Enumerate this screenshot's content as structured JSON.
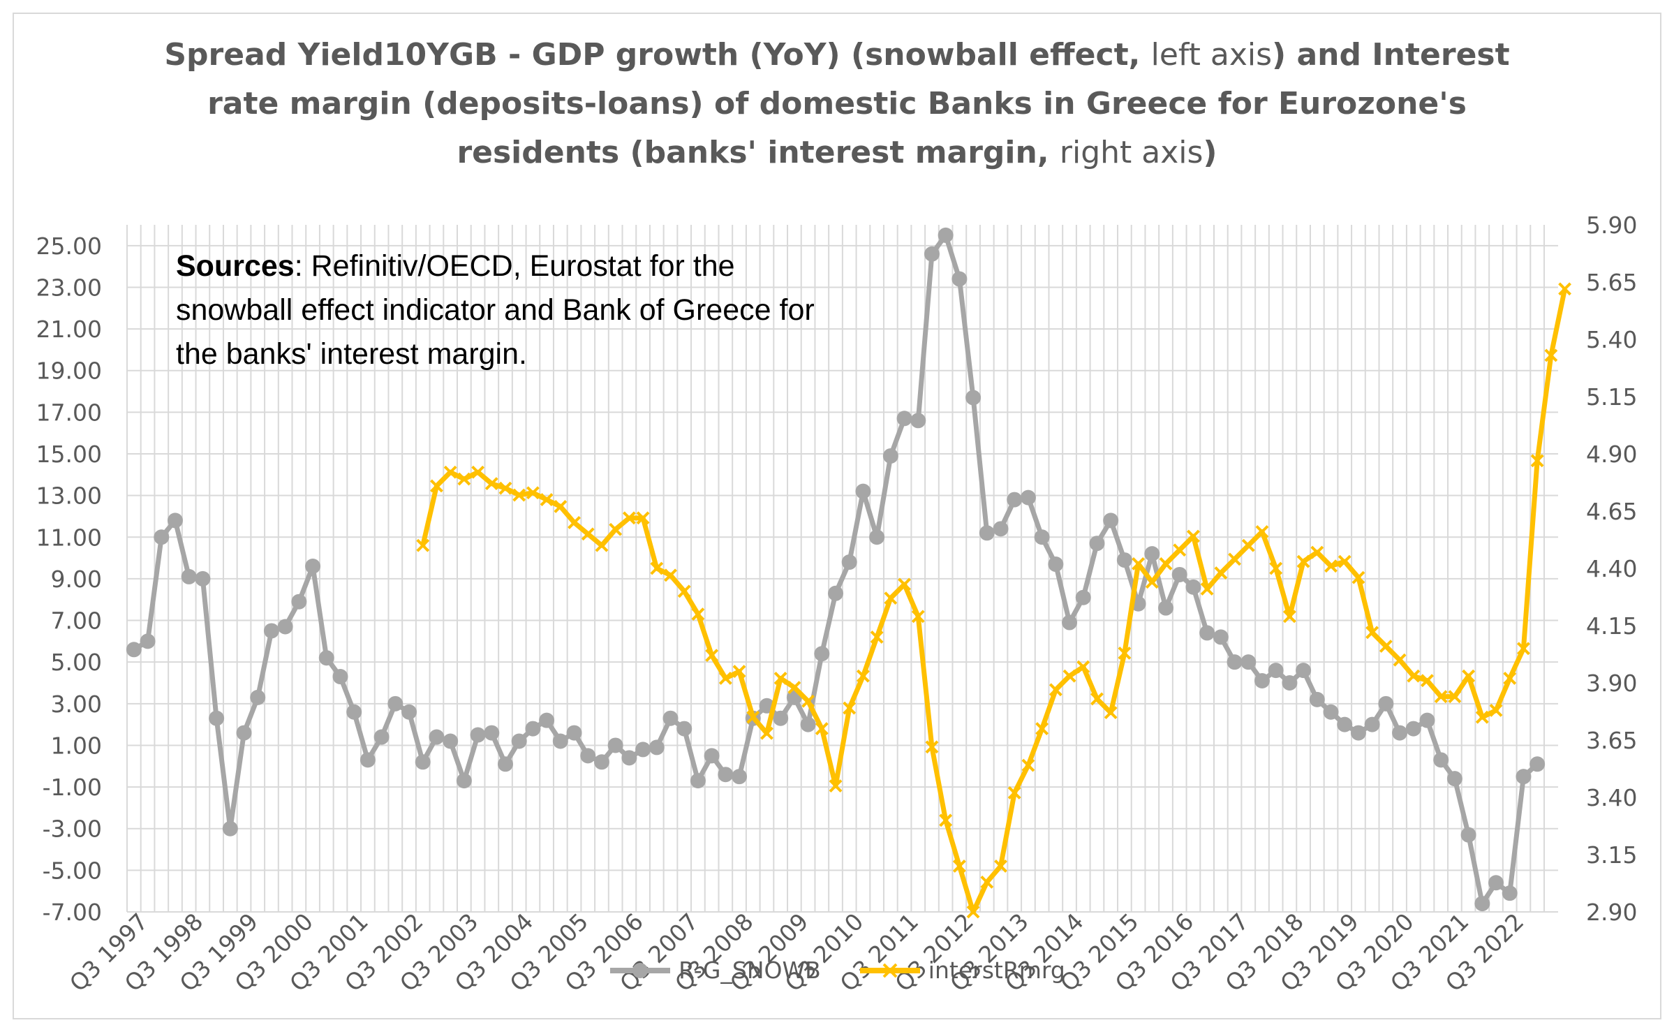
{
  "title": {
    "line1_bold_a": "Spread Yield10YGB - GDP growth (YoY) (snowball effect,",
    "line1_light": "left axis",
    "line1_bold_b": ") and Interest",
    "line2": "rate margin (deposits-loans) of domestic Banks in Greece for Eurozone's",
    "line3_bold_a": "residents (banks' interest margin,",
    "line3_light": "right axis",
    "line3_bold_b": ")"
  },
  "note": {
    "label": "Sources",
    "text": ": Refinitiv/OECD, Eurostat for the snowball effect indicator and Bank of Greece for the banks' interest margin."
  },
  "legend": [
    {
      "label": "R-G_SNOWB",
      "color": "#a6a6a6",
      "marker": "circle"
    },
    {
      "label": "interstRmrg",
      "color": "#ffc000",
      "marker": "x"
    }
  ],
  "chart_data": {
    "type": "line",
    "grid": true,
    "legend_position": "bottom",
    "x_tick_labels": [
      "Q3 1997",
      "Q3 1998",
      "Q3 1999",
      "Q3 2000",
      "Q3 2001",
      "Q3 2002",
      "Q3 2003",
      "Q3 2004",
      "Q3 2005",
      "Q3 2006",
      "Q3 2007",
      "Q3 2008",
      "Q3 2009",
      "Q3 2010",
      "Q3 2011",
      "Q3 2012",
      "Q3 2013",
      "Q3 2014",
      "Q3 2015",
      "Q3 2016",
      "Q3 2017",
      "Q3 2018",
      "Q3 2019",
      "Q3 2020",
      "Q3 2021",
      "Q3 2022"
    ],
    "x_start": "Q3 1997",
    "y_left_ticks": [
      "25.00",
      "23.00",
      "21.00",
      "19.00",
      "17.00",
      "15.00",
      "13.00",
      "11.00",
      "9.00",
      "7.00",
      "5.00",
      "3.00",
      "1.00",
      "-1.00",
      "-3.00",
      "-5.00",
      "-7.00"
    ],
    "y_right_ticks": [
      "5.90",
      "5.65",
      "5.40",
      "5.15",
      "4.90",
      "4.65",
      "4.40",
      "4.15",
      "3.90",
      "3.65",
      "3.40",
      "3.15",
      "2.90"
    ],
    "y_left_range": [
      -7,
      26
    ],
    "y_right_range": [
      2.9,
      5.9
    ],
    "series": [
      {
        "name": "R-G_SNOWB",
        "axis": "left",
        "color": "#a6a6a6",
        "values": [
          5.6,
          6.0,
          11.0,
          11.8,
          9.1,
          9.0,
          2.3,
          -3.0,
          1.6,
          3.3,
          6.5,
          6.7,
          7.9,
          9.6,
          5.2,
          4.3,
          2.6,
          0.3,
          1.4,
          3.0,
          2.6,
          0.2,
          1.4,
          1.2,
          -0.7,
          1.5,
          1.6,
          0.1,
          1.2,
          1.8,
          2.2,
          1.2,
          1.6,
          0.5,
          0.2,
          1.0,
          0.4,
          0.8,
          0.9,
          2.3,
          1.8,
          -0.7,
          0.5,
          -0.4,
          -0.5,
          2.3,
          2.9,
          2.3,
          3.3,
          2.0,
          5.4,
          8.3,
          9.8,
          13.2,
          11.0,
          14.9,
          16.7,
          16.6,
          24.6,
          25.5,
          23.4,
          17.7,
          11.2,
          11.4,
          12.8,
          12.9,
          11.0,
          9.7,
          6.9,
          8.1,
          10.7,
          11.8,
          9.9,
          7.8,
          10.2,
          7.6,
          9.2,
          8.6,
          6.4,
          6.2,
          5.0,
          5.0,
          4.1,
          4.6,
          4.0,
          4.6,
          3.2,
          2.6,
          2.0,
          1.6,
          2.0,
          3.0,
          1.6,
          1.8,
          2.2,
          0.3,
          -0.6,
          -3.3,
          -6.6,
          -5.6,
          -6.1,
          -0.5,
          0.1
        ]
      },
      {
        "name": "interstRmrg",
        "axis": "right",
        "color": "#ffc000",
        "start_index": 21,
        "values": [
          4.5,
          4.76,
          4.82,
          4.79,
          4.82,
          4.77,
          4.75,
          4.72,
          4.73,
          4.7,
          4.67,
          4.6,
          4.55,
          4.5,
          4.57,
          4.62,
          4.62,
          4.4,
          4.37,
          4.3,
          4.2,
          4.02,
          3.92,
          3.95,
          3.75,
          3.68,
          3.92,
          3.88,
          3.82,
          3.7,
          3.45,
          3.79,
          3.93,
          4.1,
          4.27,
          4.33,
          4.19,
          3.62,
          3.3,
          3.1,
          2.9,
          3.03,
          3.1,
          3.42,
          3.54,
          3.7,
          3.87,
          3.93,
          3.97,
          3.83,
          3.77,
          4.03,
          4.42,
          4.34,
          4.42,
          4.48,
          4.54,
          4.31,
          4.38,
          4.44,
          4.5,
          4.56,
          4.4,
          4.19,
          4.43,
          4.47,
          4.41,
          4.43,
          4.36,
          4.12,
          4.06,
          4.0,
          3.93,
          3.91,
          3.84,
          3.84,
          3.93,
          3.75,
          3.78,
          3.92,
          4.05,
          4.87,
          5.33,
          5.62
        ]
      }
    ]
  }
}
